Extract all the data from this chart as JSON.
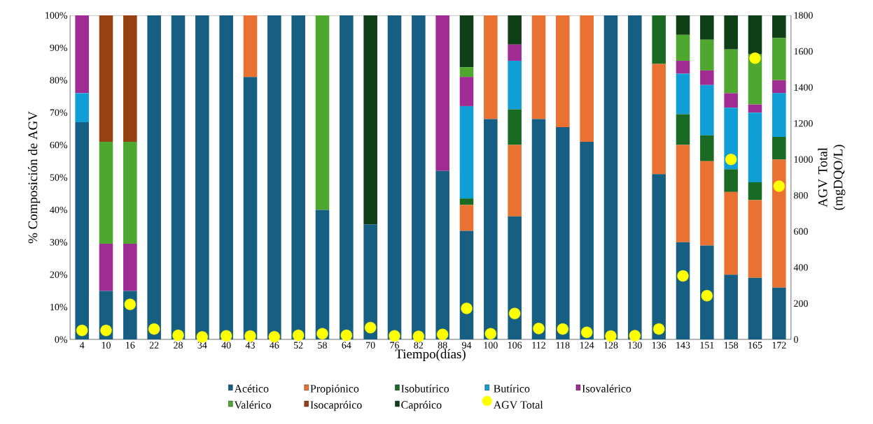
{
  "chart_data": {
    "type": "bar",
    "stacked": true,
    "xlabel": "Tiempo(días)",
    "ylabel": "% Composición de AGV",
    "y2label": "AGV Total (mgDQO/L)",
    "categories": [
      "4",
      "10",
      "16",
      "22",
      "28",
      "34",
      "40",
      "43",
      "46",
      "52",
      "58",
      "64",
      "70",
      "76",
      "82",
      "88",
      "94",
      "100",
      "106",
      "112",
      "118",
      "124",
      "128",
      "130",
      "136",
      "143",
      "151",
      "158",
      "165",
      "172"
    ],
    "ylim": [
      0,
      100
    ],
    "yticks": [
      {
        "value": 0,
        "label": "0%"
      },
      {
        "value": 10,
        "label": "10%"
      },
      {
        "value": 20,
        "label": "20%"
      },
      {
        "value": 30,
        "label": "30%"
      },
      {
        "value": 40,
        "label": "40%"
      },
      {
        "value": 50,
        "label": "50%"
      },
      {
        "value": 60,
        "label": "60%"
      },
      {
        "value": 70,
        "label": "70%"
      },
      {
        "value": 80,
        "label": "80%"
      },
      {
        "value": 90,
        "label": "90%"
      },
      {
        "value": 100,
        "label": "100%"
      }
    ],
    "y2lim": [
      0,
      1800
    ],
    "y2ticks": [
      0,
      200,
      400,
      600,
      800,
      1000,
      1200,
      1400,
      1600,
      1800
    ],
    "legend": "bottom",
    "series": [
      {
        "name": "Acético",
        "color": "#175f82",
        "values": [
          67,
          15,
          15,
          100,
          100,
          100,
          100,
          81,
          100,
          100,
          40,
          100,
          35.5,
          100,
          100,
          52,
          33.5,
          68,
          38,
          68,
          65.5,
          61,
          100,
          100,
          51,
          30,
          29,
          20,
          19,
          16
        ]
      },
      {
        "name": "Propiónico",
        "color": "#e97132",
        "values": [
          0,
          0,
          0,
          0,
          0,
          0,
          0,
          19,
          0,
          0,
          0,
          0,
          0,
          0,
          0,
          0,
          8,
          32,
          22,
          32,
          34.5,
          39,
          0,
          0,
          34,
          30,
          26,
          25.5,
          24,
          39.5
        ]
      },
      {
        "name": "Isobutírico",
        "color": "#196b24",
        "values": [
          0,
          0,
          0,
          0,
          0,
          0,
          0,
          0,
          0,
          0,
          0,
          0,
          0,
          0,
          0,
          0,
          2,
          0,
          11,
          0,
          0,
          0,
          0,
          0,
          15,
          9.5,
          8,
          7,
          5.5,
          7
        ]
      },
      {
        "name": "Butírico",
        "color": "#0f9ed5",
        "values": [
          9,
          0,
          0,
          0,
          0,
          0,
          0,
          0,
          0,
          0,
          0,
          0,
          0,
          0,
          0,
          0,
          28.5,
          0,
          15,
          0,
          0,
          0,
          0,
          0,
          0,
          12.5,
          15.5,
          19,
          21.5,
          13.5
        ]
      },
      {
        "name": "Isovalérico",
        "color": "#a02b93",
        "values": [
          24,
          14.5,
          14.5,
          0,
          0,
          0,
          0,
          0,
          0,
          0,
          0,
          0,
          0,
          0,
          0,
          48,
          9,
          0,
          5,
          0,
          0,
          0,
          0,
          0,
          0,
          4,
          4.5,
          4.5,
          2.5,
          4
        ]
      },
      {
        "name": "Valérico",
        "color": "#4ea72e",
        "values": [
          0,
          31.5,
          31.5,
          0,
          0,
          0,
          0,
          0,
          0,
          0,
          60,
          0,
          0,
          0,
          0,
          0,
          3,
          0,
          0,
          0,
          0,
          0,
          0,
          0,
          0,
          8,
          9.5,
          13.5,
          15.5,
          13
        ]
      },
      {
        "name": "Isocapróico",
        "color": "#974011",
        "values": [
          0,
          39,
          39,
          0,
          0,
          0,
          0,
          0,
          0,
          0,
          0,
          0,
          0,
          0,
          0,
          0,
          0,
          0,
          0,
          0,
          0,
          0,
          0,
          0,
          0,
          0,
          0,
          0,
          0,
          0
        ]
      },
      {
        "name": "Capróico",
        "color": "#0f3f17",
        "values": [
          0,
          0,
          0,
          0,
          0,
          0,
          0,
          0,
          0,
          0,
          0,
          0,
          64.5,
          0,
          0,
          0,
          16,
          0,
          9,
          0,
          0,
          0,
          0,
          0,
          0,
          6,
          7.5,
          10.5,
          12,
          7
        ]
      },
      {
        "name": "AGV Total",
        "type": "scatter",
        "axis": "y2",
        "color": "#ffff00",
        "values": [
          50,
          50,
          195,
          58,
          23,
          14,
          20,
          19,
          15,
          23,
          32,
          23,
          66,
          20,
          17,
          28,
          173,
          32,
          144,
          61,
          58,
          40,
          19,
          21,
          58,
          353,
          243,
          1000,
          1562,
          851
        ]
      }
    ]
  }
}
